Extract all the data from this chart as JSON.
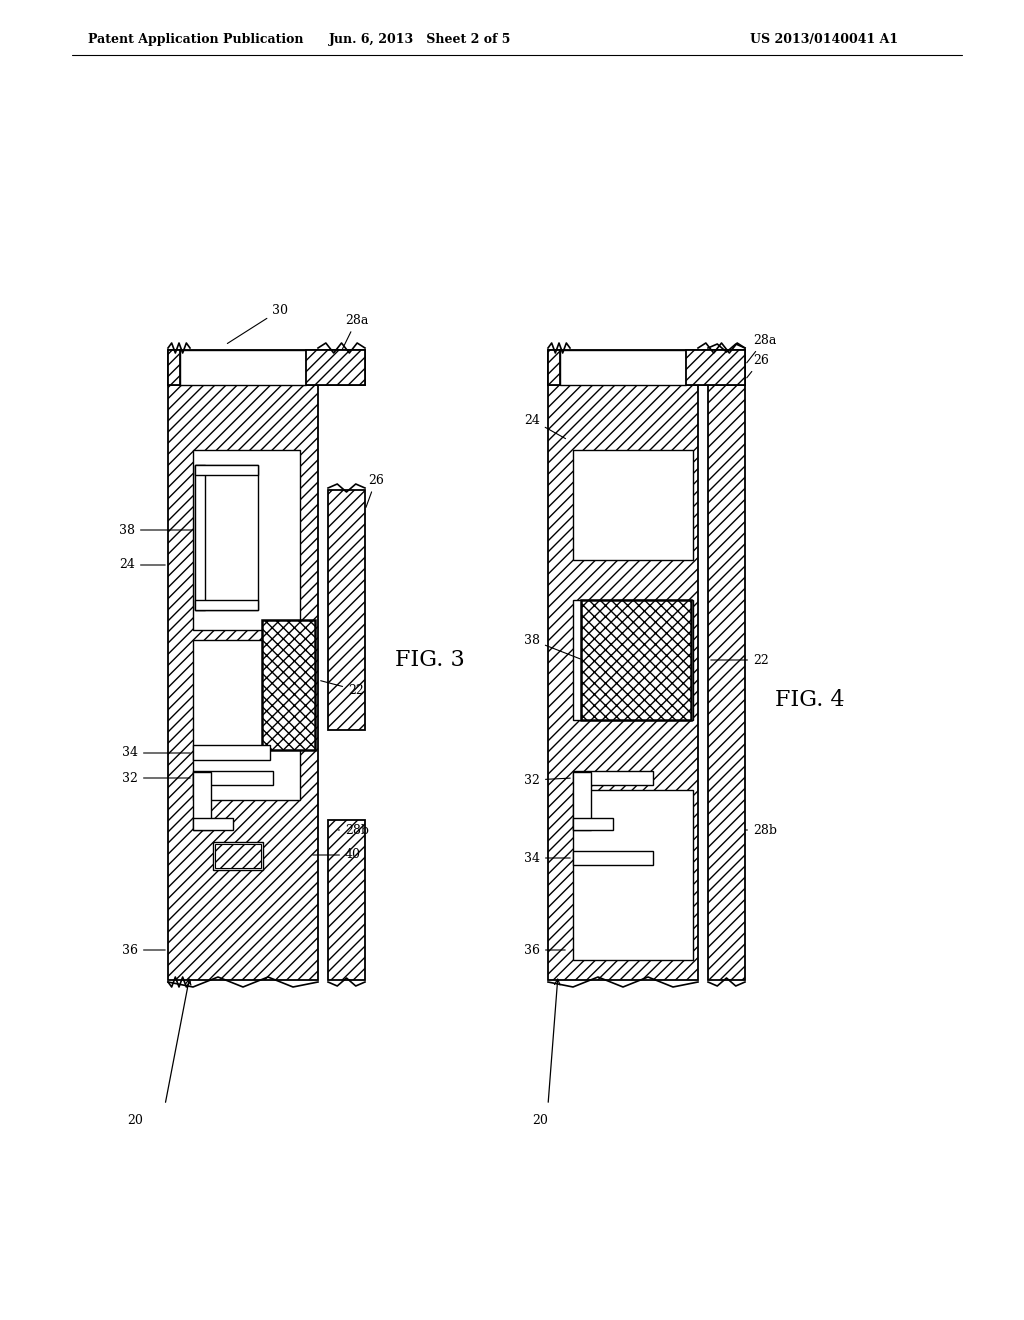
{
  "title_left": "Patent Application Publication",
  "title_mid": "Jun. 6, 2013   Sheet 2 of 5",
  "title_right": "US 2013/0140041 A1",
  "fig3_label": "FIG. 3",
  "fig4_label": "FIG. 4",
  "bg_color": "#ffffff",
  "lc": "#000000"
}
